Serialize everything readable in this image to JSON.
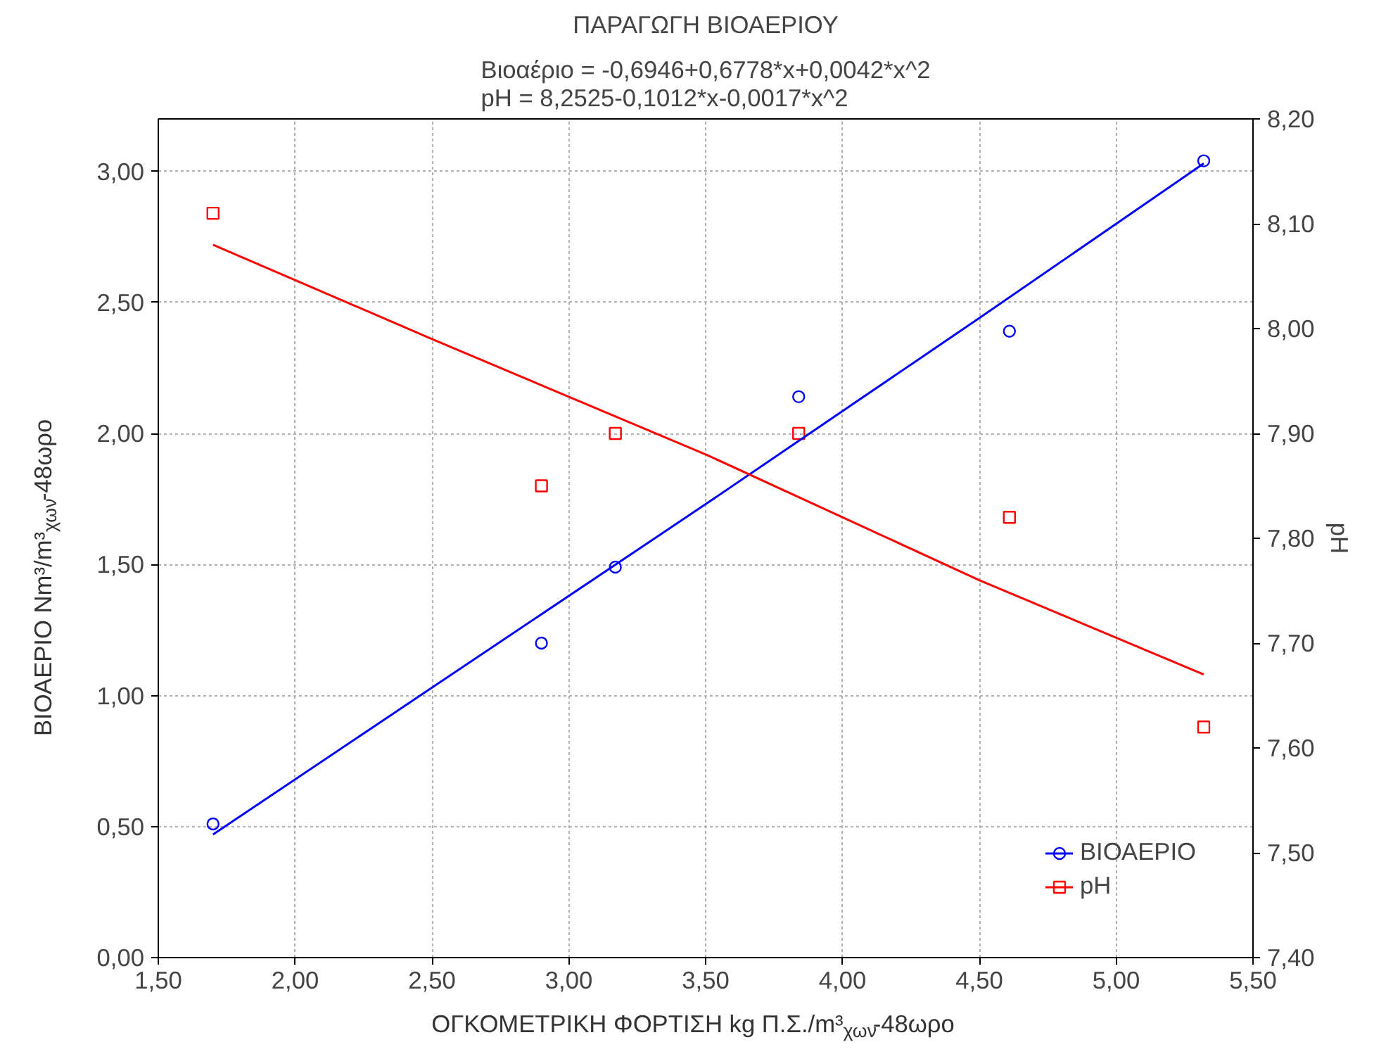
{
  "chart_data": {
    "type": "scatter",
    "title": "ΠΑΡΑΓΩΓΗ ΒΙΟΑΕΡΙΟΥ",
    "subtitle": "Βιοαέριο = -0,6946+0,6778*x+0,0042*x^2\npH = 8,2525-0,1012*x-0,0017*x^2",
    "xlabel": "ΟΓΚΟΜΕΤΡΙΚΗ ΦΟΡΤΙΣΗ kg Π.Σ./m³$_{χων}$-48ωρο",
    "ylabel": "ΒΙΟΑΕΡΙΟ Nm³/m³$_{χων}$-48ωρο",
    "y2label": "pH",
    "xlim": [
      1.5,
      5.5
    ],
    "xticks": [
      {
        "value": 1.5,
        "label": "1,50"
      },
      {
        "value": 2.0,
        "label": "2,00"
      },
      {
        "value": 2.5,
        "label": "2,50"
      },
      {
        "value": 3.0,
        "label": "3,00"
      },
      {
        "value": 3.5,
        "label": "3,50"
      },
      {
        "value": 4.0,
        "label": "4,00"
      },
      {
        "value": 4.5,
        "label": "4,50"
      },
      {
        "value": 5.0,
        "label": "5,00"
      },
      {
        "value": 5.5,
        "label": "5,50"
      }
    ],
    "ylim": [
      0,
      3.2
    ],
    "yticks": [
      {
        "value": 0,
        "label": "0,00"
      },
      {
        "value": 0.5,
        "label": "0,50"
      },
      {
        "value": 1.0,
        "label": "1,00"
      },
      {
        "value": 1.5,
        "label": "1,50"
      },
      {
        "value": 2.0,
        "label": "2,00"
      },
      {
        "value": 2.5,
        "label": "2,50"
      },
      {
        "value": 3.0,
        "label": "3,00"
      }
    ],
    "y2lim": [
      7.4,
      8.2
    ],
    "y2ticks": [
      {
        "value": 7.4,
        "label": "7,40"
      },
      {
        "value": 7.5,
        "label": "7,50"
      },
      {
        "value": 7.6,
        "label": "7,60"
      },
      {
        "value": 7.7,
        "label": "7,70"
      },
      {
        "value": 7.8,
        "label": "7,80"
      },
      {
        "value": 7.9,
        "label": "7,90"
      },
      {
        "value": 8.0,
        "label": "8,00"
      },
      {
        "value": 8.1,
        "label": "8,10"
      },
      {
        "value": 8.2,
        "label": "8,20"
      }
    ],
    "grid": true,
    "legend": "bottom right",
    "series": [
      {
        "name": "ΒΙΟΑΕΡΙΟ",
        "marker": "circle",
        "color": "#0000ff",
        "x": [
          1.7,
          2.9,
          3.17,
          3.84,
          4.61,
          5.32
        ],
        "values": [
          0.51,
          1.2,
          1.49,
          2.14,
          2.39,
          3.04
        ]
      },
      {
        "name": "pH",
        "marker": "square",
        "axis": "y2",
        "color": "#ff0000",
        "x": [
          1.7,
          2.9,
          3.17,
          3.84,
          4.61,
          5.32
        ],
        "values": [
          8.11,
          7.85,
          7.9,
          7.9,
          7.82,
          7.62
        ]
      },
      {
        "type": "line",
        "color": "#0000ff",
        "x": [
          1.7,
          2.5,
          3.5,
          4.5,
          5.32
        ],
        "values": [
          0.47,
          1.03,
          1.73,
          2.44,
          3.03
        ]
      },
      {
        "type": "line",
        "axis": "y2",
        "color": "#ff0000",
        "x": [
          1.7,
          2.5,
          3.5,
          4.5,
          5.32
        ],
        "values": [
          8.08,
          7.99,
          7.88,
          7.76,
          7.67
        ]
      }
    ]
  }
}
